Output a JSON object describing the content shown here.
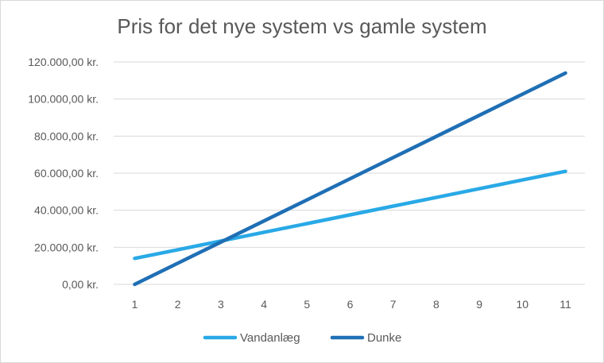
{
  "chart_data": {
    "type": "line",
    "title": "Pris for det nye system vs gamle system",
    "xlabel": "",
    "ylabel": "",
    "categories": [
      "1",
      "2",
      "3",
      "4",
      "5",
      "6",
      "7",
      "8",
      "9",
      "10",
      "11"
    ],
    "y_ticks": [
      0,
      20000,
      40000,
      60000,
      80000,
      100000,
      120000
    ],
    "y_tick_labels": [
      "0,00 kr.",
      "20.000,00 kr.",
      "40.000,00 kr.",
      "60.000,00 kr.",
      "80.000,00 kr.",
      "100.000,00 kr.",
      "120.000,00 kr."
    ],
    "ylim": [
      0,
      120000
    ],
    "grid": true,
    "legend_position": "bottom",
    "series": [
      {
        "name": "Vandanlæg",
        "color": "#29a9e6",
        "values": [
          14000,
          18700,
          23400,
          28100,
          32800,
          37500,
          42200,
          46900,
          51600,
          56300,
          61000
        ]
      },
      {
        "name": "Dunke",
        "color": "#1f6fb5",
        "values": [
          0,
          11400,
          22800,
          34200,
          45600,
          57000,
          68400,
          79800,
          91200,
          102600,
          114000
        ]
      }
    ]
  }
}
